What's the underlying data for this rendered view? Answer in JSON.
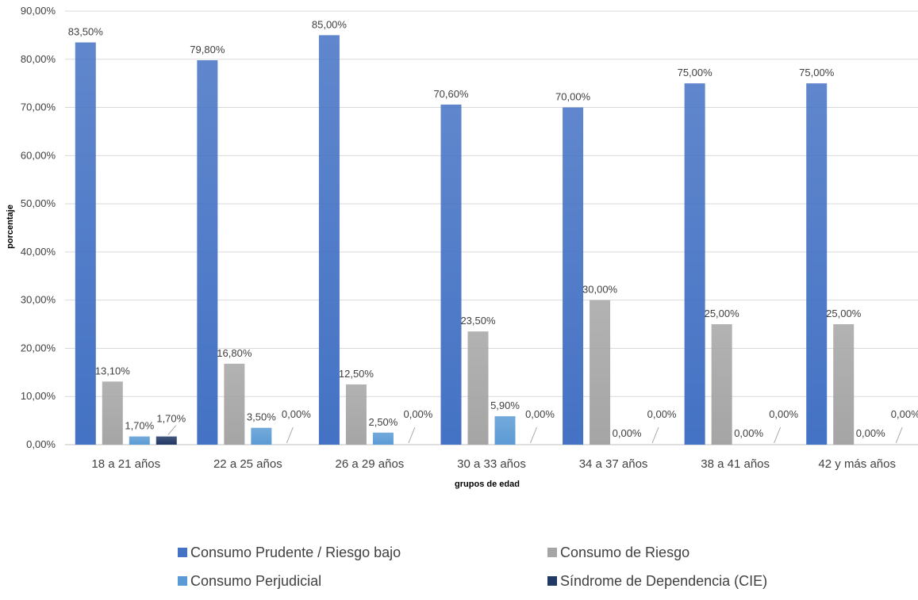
{
  "chart_data": {
    "type": "bar",
    "xlabel": "grupos de edad",
    "ylabel": "porcentaje",
    "ylim": [
      0,
      90
    ],
    "ytick_step": 10,
    "ytick_labels": [
      "0,00%",
      "10,00%",
      "20,00%",
      "30,00%",
      "40,00%",
      "50,00%",
      "60,00%",
      "70,00%",
      "80,00%",
      "90,00%"
    ],
    "grid": true,
    "legend_position": "bottom",
    "categories": [
      "18 a 21 años",
      "22 a 25 años",
      "26 a 29 años",
      "30 a 33 años",
      "34 a 37 años",
      "38 a 41 años",
      "42 y más años"
    ],
    "series": [
      {
        "name": "Consumo Prudente / Riesgo bajo",
        "color": "#4472C4",
        "values": [
          83.5,
          79.8,
          85.0,
          70.6,
          70.0,
          75.0,
          75.0
        ],
        "labels": [
          "83,50%",
          "79,80%",
          "85,00%",
          "70,60%",
          "70,00%",
          "75,00%",
          "75,00%"
        ]
      },
      {
        "name": "Consumo de Riesgo",
        "color": "#A5A5A5",
        "values": [
          13.1,
          16.8,
          12.5,
          23.5,
          30.0,
          25.0,
          25.0
        ],
        "labels": [
          "13,10%",
          "16,80%",
          "12,50%",
          "23,50%",
          "30,00%",
          "25,00%",
          "25,00%"
        ]
      },
      {
        "name": "Consumo Perjudicial",
        "color": "#5B9BD5",
        "values": [
          1.7,
          3.5,
          2.5,
          5.9,
          0.0,
          0.0,
          0.0
        ],
        "labels": [
          "1,70%",
          "3,50%",
          "2,50%",
          "5,90%",
          "0,00%",
          "0,00%",
          "0,00%"
        ]
      },
      {
        "name": "Síndrome de Dependencia (CIE)",
        "color": "#203864",
        "values": [
          1.7,
          0.0,
          0.0,
          0.0,
          0.0,
          0.0,
          0.0
        ],
        "labels": [
          "1,70%",
          "0,00%",
          "0,00%",
          "0,00%",
          "0,00%",
          "0,00%",
          "0,00%"
        ]
      }
    ]
  }
}
